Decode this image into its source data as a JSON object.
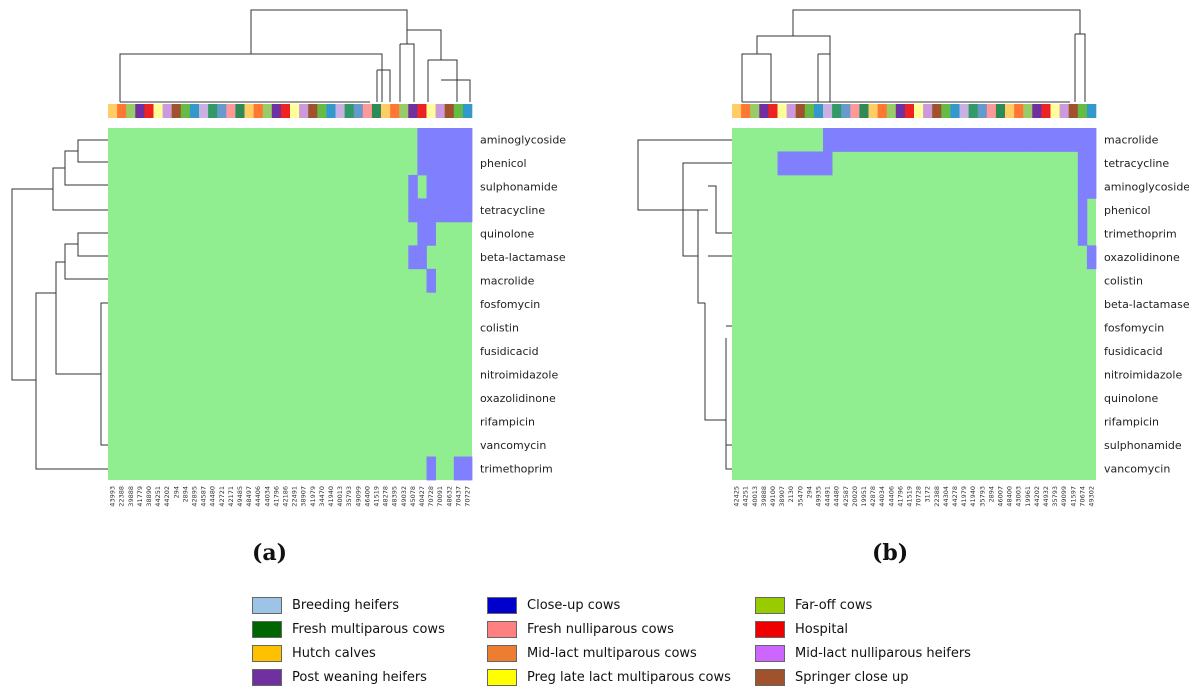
{
  "panels": {
    "a_label": "(a)",
    "b_label": "(b)"
  },
  "colors": {
    "absent": "#90ee90",
    "present": "#8080ff",
    "tree": "#333333"
  },
  "chart_data": [
    {
      "type": "heatmap",
      "panel": "(a)",
      "rows": [
        "aminoglycoside",
        "phenicol",
        "sulphonamide",
        "tetracycline",
        "quinolone",
        "beta-lactamase",
        "macrolide",
        "fosfomycin",
        "colistin",
        "fusidicacid",
        "nitroimidazole",
        "oxazolidinone",
        "rifampicin",
        "vancomycin",
        "trimethoprim"
      ],
      "columns": [
        "43993",
        "22388",
        "39888",
        "41779",
        "38890",
        "44251",
        "44202",
        "294",
        "2894",
        "42895",
        "44587",
        "44480",
        "42721",
        "42171",
        "49485",
        "48497",
        "44406",
        "44034",
        "41796",
        "42186",
        "22491",
        "38907",
        "41979",
        "34470",
        "41940",
        "40013",
        "35793",
        "49099",
        "46400",
        "41519",
        "48278",
        "48395",
        "49032",
        "45078",
        "40427",
        "70728",
        "70091",
        "48632",
        "70437",
        "70727"
      ],
      "present": [
        [
          34,
          35,
          36,
          37,
          38,
          39
        ],
        [
          34,
          35,
          36,
          37,
          38,
          39
        ],
        [
          33,
          35,
          36,
          37,
          38,
          39
        ],
        [
          33,
          34,
          35,
          36,
          37,
          38,
          39
        ],
        [
          34,
          35
        ],
        [
          33,
          34
        ],
        [
          35
        ],
        [],
        [],
        [],
        [],
        [],
        [],
        [],
        [
          35,
          38,
          39
        ]
      ],
      "value_legend": {
        "0": "absent",
        "1": "present"
      }
    },
    {
      "type": "heatmap",
      "panel": "(b)",
      "rows": [
        "macrolide",
        "tetracycline",
        "aminoglycoside",
        "phenicol",
        "trimethoprim",
        "oxazolidinone",
        "colistin",
        "beta-lactamase",
        "fosfomycin",
        "fusidicacid",
        "nitroimidazole",
        "quinolone",
        "rifampicin",
        "sulphonamide",
        "vancomycin"
      ],
      "columns": [
        "42425",
        "44251",
        "40013",
        "39888",
        "49100",
        "38907",
        "2130",
        "35470",
        "294",
        "49935",
        "44491",
        "44480",
        "42587",
        "20020",
        "19951",
        "42878",
        "44034",
        "44406",
        "41796",
        "41519",
        "70728",
        "3172",
        "22388",
        "44304",
        "44278",
        "41979",
        "41940",
        "35793",
        "2894",
        "46007",
        "48400",
        "43003",
        "19961",
        "44202",
        "44932",
        "35793",
        "49099",
        "41597",
        "70674",
        "49302"
      ],
      "present": [
        [
          10,
          11,
          12,
          13,
          14,
          15,
          16,
          17,
          18,
          19,
          20,
          21,
          22,
          23,
          24,
          25,
          26,
          27,
          28,
          29,
          30,
          31,
          32,
          33,
          34,
          35,
          36,
          37,
          38,
          39
        ],
        [
          5,
          6,
          7,
          8,
          9,
          10,
          38,
          39
        ],
        [
          38,
          39
        ],
        [
          38
        ],
        [
          38
        ],
        [
          39
        ],
        [],
        [],
        [],
        [],
        [],
        [],
        [],
        [],
        []
      ],
      "value_legend": {
        "0": "absent",
        "1": "present"
      }
    }
  ],
  "legend": {
    "items": [
      {
        "label": "Breeding heifers",
        "color": "#9dc3e6"
      },
      {
        "label": "Close-up cows",
        "color": "#0000cc"
      },
      {
        "label": "Far-off cows",
        "color": "#99cc00"
      },
      {
        "label": "Fresh multiparous cows",
        "color": "#006600"
      },
      {
        "label": "Fresh nulliparous cows",
        "color": "#ff8080"
      },
      {
        "label": "Hospital",
        "color": "#ee0000"
      },
      {
        "label": "Hutch calves",
        "color": "#ffc000"
      },
      {
        "label": "Mid-lact multiparous cows",
        "color": "#ed7d31"
      },
      {
        "label": "Mid-lact nulliparous heifers",
        "color": "#cc66ff"
      },
      {
        "label": "Post weaning heifers",
        "color": "#7030a0"
      },
      {
        "label": "Preg late lact multiparous cows",
        "color": "#ffff00"
      },
      {
        "label": "Springer close up",
        "color": "#a0522d"
      }
    ]
  }
}
